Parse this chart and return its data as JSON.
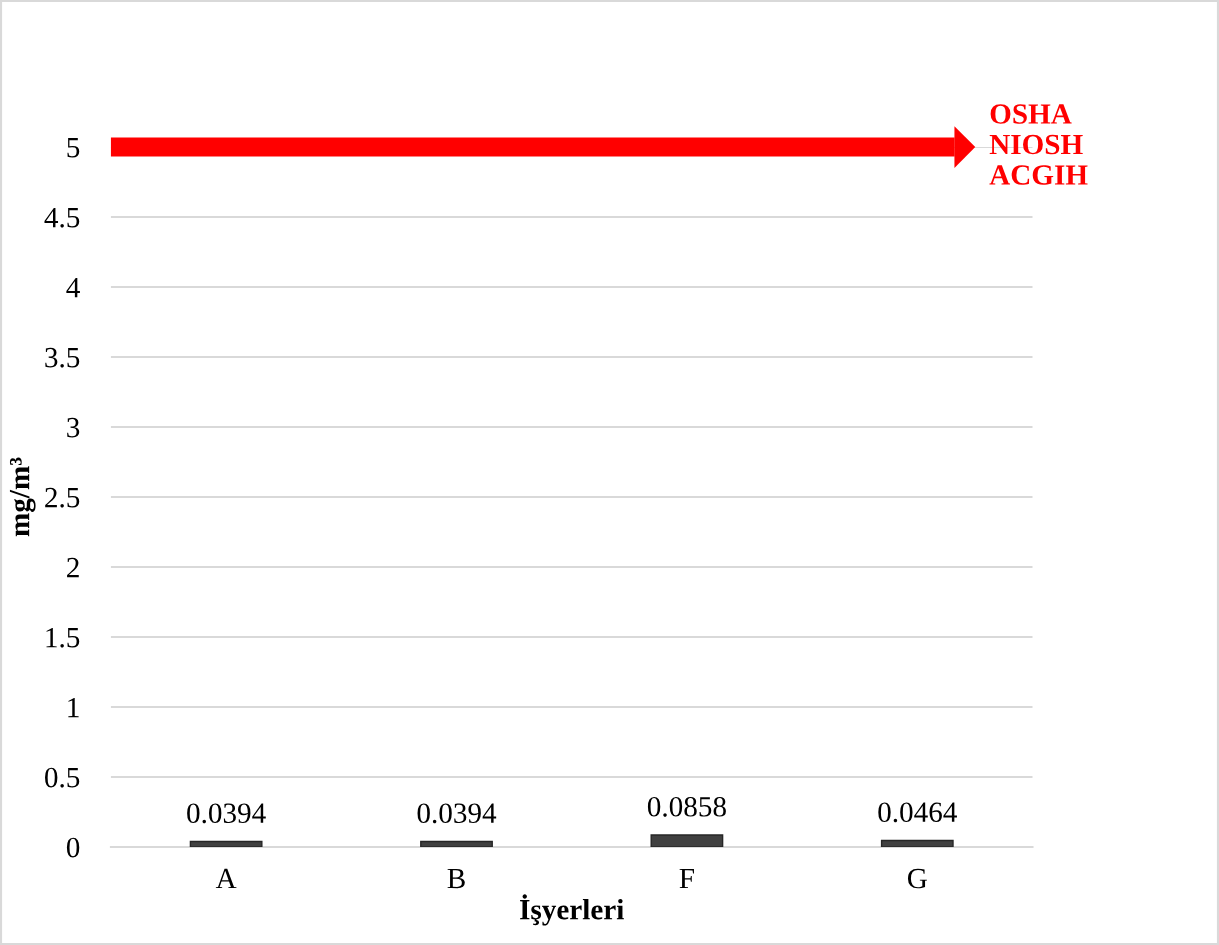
{
  "chart_data": {
    "type": "bar",
    "categories": [
      "A",
      "B",
      "F",
      "G"
    ],
    "values": [
      0.0394,
      0.0394,
      0.0858,
      0.0464
    ],
    "color": "#404040",
    "xlabel": "İşyerleri",
    "ylabel": "mg/m³",
    "ylim": [
      0,
      5
    ],
    "yticks": [
      0,
      0.5,
      1,
      1.5,
      2,
      2.5,
      3,
      3.5,
      4,
      4.5,
      5
    ],
    "grid": "y",
    "data_labels": true,
    "ref_lines": [
      {
        "axis": "y",
        "value": 5,
        "label": "OSHA\nNIOSH\nACGIH",
        "color": "#ff0000"
      }
    ]
  }
}
